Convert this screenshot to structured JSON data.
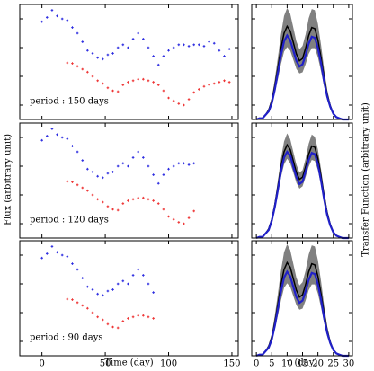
{
  "chart_data": [
    {
      "type": "scatter",
      "annotation": "period :  150 days",
      "xlim": [
        -17.5,
        155
      ],
      "xticks": [
        0,
        50,
        100,
        150
      ],
      "ylim": [
        0,
        4
      ],
      "yticks": [
        0.5,
        1.5,
        2.5,
        3.5
      ],
      "show_xtick_labels": false,
      "series": [
        {
          "color": "#2a2ae0",
          "x": [
            0,
            4,
            8,
            12,
            16,
            20,
            24,
            28,
            32,
            36,
            40,
            44,
            48,
            52,
            56,
            60,
            64,
            68,
            72,
            76,
            80,
            84,
            88,
            92,
            96,
            100,
            104,
            108,
            112,
            116,
            120,
            124,
            128,
            132,
            136,
            140,
            144,
            148
          ],
          "values": [
            3.4,
            3.55,
            3.8,
            3.6,
            3.5,
            3.45,
            3.2,
            3.0,
            2.7,
            2.4,
            2.3,
            2.15,
            2.1,
            2.25,
            2.3,
            2.5,
            2.6,
            2.5,
            2.8,
            3.0,
            2.8,
            2.5,
            2.2,
            1.9,
            2.2,
            2.4,
            2.5,
            2.6,
            2.6,
            2.55,
            2.6,
            2.6,
            2.55,
            2.7,
            2.65,
            2.4,
            2.2,
            2.45
          ]
        },
        {
          "color": "#ee3333",
          "x": [
            20,
            24,
            28,
            32,
            36,
            40,
            44,
            48,
            52,
            56,
            60,
            64,
            68,
            72,
            76,
            80,
            84,
            88,
            92,
            96,
            100,
            104,
            108,
            112,
            116,
            120,
            124,
            128,
            132,
            136,
            140,
            144,
            148
          ],
          "values": [
            1.97,
            1.95,
            1.85,
            1.75,
            1.65,
            1.5,
            1.35,
            1.25,
            1.1,
            1.0,
            0.97,
            1.2,
            1.3,
            1.35,
            1.4,
            1.4,
            1.35,
            1.3,
            1.2,
            1.0,
            0.75,
            0.65,
            0.55,
            0.5,
            0.7,
            0.94,
            1.05,
            1.15,
            1.2,
            1.25,
            1.3,
            1.35,
            1.3
          ]
        }
      ]
    },
    {
      "type": "line",
      "xlim": [
        -1.5,
        31.2
      ],
      "xticks": [
        0,
        5,
        10,
        15,
        20,
        25,
        30
      ],
      "ylim": [
        0,
        1
      ],
      "yticks": [
        0.125,
        0.375,
        0.625,
        0.875
      ],
      "show_xtick_labels": false,
      "x": [
        0,
        1,
        2,
        3,
        4,
        5,
        6,
        7,
        8,
        9,
        10,
        11,
        12,
        13,
        14,
        15,
        16,
        17,
        18,
        19,
        20,
        21,
        22,
        23,
        24,
        25,
        26,
        27,
        28,
        29,
        30
      ],
      "band": {
        "color": "#808080",
        "upper": [
          0,
          0.01,
          0.02,
          0.05,
          0.1,
          0.19,
          0.35,
          0.54,
          0.74,
          0.9,
          0.97,
          0.92,
          0.8,
          0.68,
          0.61,
          0.64,
          0.74,
          0.88,
          0.96,
          0.95,
          0.83,
          0.65,
          0.44,
          0.26,
          0.14,
          0.06,
          0.02,
          0.01,
          0,
          0,
          0
        ],
        "lower": [
          0,
          0.01,
          0.01,
          0.03,
          0.06,
          0.12,
          0.23,
          0.35,
          0.48,
          0.59,
          0.63,
          0.6,
          0.52,
          0.44,
          0.4,
          0.41,
          0.48,
          0.57,
          0.62,
          0.62,
          0.54,
          0.42,
          0.29,
          0.17,
          0.09,
          0.04,
          0.02,
          0.01,
          0,
          0,
          0
        ]
      },
      "series": [
        {
          "color": "#000000",
          "values": [
            0,
            0.01,
            0.01,
            0.04,
            0.08,
            0.16,
            0.29,
            0.45,
            0.62,
            0.75,
            0.81,
            0.77,
            0.67,
            0.57,
            0.51,
            0.53,
            0.62,
            0.73,
            0.8,
            0.79,
            0.69,
            0.54,
            0.37,
            0.22,
            0.12,
            0.05,
            0.02,
            0.01,
            0,
            0,
            0
          ]
        },
        {
          "color": "#2020c8",
          "values": [
            0,
            0.01,
            0.01,
            0.04,
            0.07,
            0.14,
            0.26,
            0.41,
            0.56,
            0.68,
            0.73,
            0.69,
            0.6,
            0.51,
            0.46,
            0.48,
            0.56,
            0.66,
            0.72,
            0.71,
            0.62,
            0.49,
            0.33,
            0.2,
            0.11,
            0.05,
            0.02,
            0.01,
            0,
            0,
            0
          ]
        }
      ]
    },
    {
      "type": "scatter",
      "annotation": "period :  120 days",
      "ylabel": "Flux (arbitrary unit)",
      "xlim": [
        -17.5,
        155
      ],
      "xticks": [
        0,
        50,
        100,
        150
      ],
      "ylim": [
        0,
        4
      ],
      "yticks": [
        0.5,
        1.5,
        2.5,
        3.5
      ],
      "show_xtick_labels": false,
      "series": [
        {
          "color": "#2a2ae0",
          "x": [
            0,
            4,
            8,
            12,
            16,
            20,
            24,
            28,
            32,
            36,
            40,
            44,
            48,
            52,
            56,
            60,
            64,
            68,
            72,
            76,
            80,
            84,
            88,
            92,
            96,
            100,
            104,
            108,
            112,
            116,
            120
          ],
          "values": [
            3.4,
            3.55,
            3.8,
            3.6,
            3.5,
            3.45,
            3.2,
            3.0,
            2.7,
            2.4,
            2.3,
            2.15,
            2.1,
            2.25,
            2.3,
            2.5,
            2.6,
            2.5,
            2.8,
            3.0,
            2.8,
            2.5,
            2.2,
            1.9,
            2.2,
            2.4,
            2.5,
            2.6,
            2.6,
            2.55,
            2.6
          ]
        },
        {
          "color": "#ee3333",
          "x": [
            20,
            24,
            28,
            32,
            36,
            40,
            44,
            48,
            52,
            56,
            60,
            64,
            68,
            72,
            76,
            80,
            84,
            88,
            92,
            96,
            100,
            104,
            108,
            112,
            116,
            120
          ],
          "values": [
            1.97,
            1.95,
            1.85,
            1.75,
            1.65,
            1.5,
            1.35,
            1.25,
            1.1,
            1.0,
            0.97,
            1.2,
            1.3,
            1.35,
            1.4,
            1.4,
            1.35,
            1.3,
            1.2,
            1.0,
            0.75,
            0.65,
            0.55,
            0.5,
            0.7,
            0.94
          ]
        }
      ]
    },
    {
      "type": "line",
      "ylabel": "Transfer Function (arbitrary unit)",
      "xlim": [
        -1.5,
        31.2
      ],
      "xticks": [
        0,
        5,
        10,
        15,
        20,
        25,
        30
      ],
      "ylim": [
        0,
        1
      ],
      "yticks": [
        0.125,
        0.375,
        0.625,
        0.875
      ],
      "show_xtick_labels": false,
      "x": [
        0,
        1,
        2,
        3,
        4,
        5,
        6,
        7,
        8,
        9,
        10,
        11,
        12,
        13,
        14,
        15,
        16,
        17,
        18,
        19,
        20,
        21,
        22,
        23,
        24,
        25,
        26,
        27,
        28,
        29,
        30
      ],
      "band": {
        "color": "#808080",
        "upper": [
          0,
          0.01,
          0.01,
          0.04,
          0.09,
          0.18,
          0.32,
          0.5,
          0.69,
          0.84,
          0.91,
          0.86,
          0.75,
          0.64,
          0.57,
          0.59,
          0.69,
          0.82,
          0.9,
          0.88,
          0.77,
          0.6,
          0.41,
          0.25,
          0.13,
          0.06,
          0.02,
          0.01,
          0,
          0,
          0
        ],
        "lower": [
          0,
          0.01,
          0.01,
          0.03,
          0.07,
          0.14,
          0.25,
          0.38,
          0.53,
          0.64,
          0.69,
          0.65,
          0.57,
          0.48,
          0.43,
          0.45,
          0.53,
          0.62,
          0.68,
          0.67,
          0.59,
          0.46,
          0.31,
          0.19,
          0.1,
          0.04,
          0.02,
          0.01,
          0,
          0,
          0
        ]
      },
      "series": [
        {
          "color": "#000000",
          "values": [
            0,
            0.01,
            0.01,
            0.04,
            0.08,
            0.16,
            0.29,
            0.45,
            0.62,
            0.75,
            0.81,
            0.77,
            0.67,
            0.57,
            0.51,
            0.53,
            0.62,
            0.73,
            0.8,
            0.79,
            0.69,
            0.54,
            0.37,
            0.22,
            0.12,
            0.05,
            0.02,
            0.01,
            0,
            0,
            0
          ]
        },
        {
          "color": "#2020c8",
          "values": [
            0,
            0.01,
            0.01,
            0.04,
            0.07,
            0.15,
            0.27,
            0.42,
            0.58,
            0.7,
            0.75,
            0.72,
            0.62,
            0.53,
            0.47,
            0.49,
            0.58,
            0.68,
            0.74,
            0.73,
            0.64,
            0.5,
            0.34,
            0.2,
            0.11,
            0.05,
            0.02,
            0.01,
            0,
            0,
            0
          ]
        }
      ]
    },
    {
      "type": "scatter",
      "annotation": "period :  90 days",
      "xlabel": "Time (day)",
      "xlim": [
        -17.5,
        155
      ],
      "xticks": [
        0,
        50,
        100,
        150
      ],
      "ylim": [
        0,
        4
      ],
      "yticks": [
        0.5,
        1.5,
        2.5,
        3.5
      ],
      "show_xtick_labels": true,
      "series": [
        {
          "color": "#2a2ae0",
          "x": [
            0,
            4,
            8,
            12,
            16,
            20,
            24,
            28,
            32,
            36,
            40,
            44,
            48,
            52,
            56,
            60,
            64,
            68,
            72,
            76,
            80,
            84,
            88
          ],
          "values": [
            3.4,
            3.55,
            3.8,
            3.6,
            3.5,
            3.45,
            3.2,
            3.0,
            2.7,
            2.4,
            2.3,
            2.15,
            2.1,
            2.25,
            2.3,
            2.5,
            2.6,
            2.5,
            2.8,
            3.0,
            2.8,
            2.5,
            2.2
          ]
        },
        {
          "color": "#ee3333",
          "x": [
            20,
            24,
            28,
            32,
            36,
            40,
            44,
            48,
            52,
            56,
            60,
            64,
            68,
            72,
            76,
            80,
            84,
            88
          ],
          "values": [
            1.97,
            1.95,
            1.85,
            1.75,
            1.65,
            1.5,
            1.35,
            1.25,
            1.1,
            1.0,
            0.97,
            1.2,
            1.3,
            1.35,
            1.4,
            1.4,
            1.35,
            1.3
          ]
        }
      ]
    },
    {
      "type": "line",
      "xlabel": "τ (day)",
      "xlim": [
        -1.5,
        31.2
      ],
      "xticks": [
        0,
        5,
        10,
        15,
        20,
        25,
        30
      ],
      "ylim": [
        0,
        1
      ],
      "yticks": [
        0.125,
        0.375,
        0.625,
        0.875
      ],
      "show_xtick_labels": true,
      "x": [
        0,
        1,
        2,
        3,
        4,
        5,
        6,
        7,
        8,
        9,
        10,
        11,
        12,
        13,
        14,
        15,
        16,
        17,
        18,
        19,
        20,
        21,
        22,
        23,
        24,
        25,
        26,
        27,
        28,
        29,
        30
      ],
      "band": {
        "color": "#808080",
        "upper": [
          0,
          0.01,
          0.02,
          0.05,
          0.1,
          0.19,
          0.35,
          0.54,
          0.74,
          0.9,
          0.97,
          0.92,
          0.8,
          0.68,
          0.61,
          0.64,
          0.74,
          0.88,
          0.96,
          0.95,
          0.83,
          0.65,
          0.44,
          0.26,
          0.14,
          0.06,
          0.02,
          0.01,
          0,
          0,
          0
        ],
        "lower": [
          0,
          0.01,
          0.01,
          0.03,
          0.06,
          0.12,
          0.23,
          0.35,
          0.48,
          0.59,
          0.63,
          0.6,
          0.52,
          0.44,
          0.4,
          0.41,
          0.48,
          0.57,
          0.62,
          0.62,
          0.54,
          0.42,
          0.29,
          0.17,
          0.09,
          0.04,
          0.02,
          0.01,
          0,
          0,
          0
        ]
      },
      "series": [
        {
          "color": "#000000",
          "values": [
            0,
            0.01,
            0.01,
            0.04,
            0.08,
            0.16,
            0.29,
            0.45,
            0.62,
            0.75,
            0.81,
            0.77,
            0.67,
            0.57,
            0.51,
            0.53,
            0.62,
            0.73,
            0.8,
            0.79,
            0.69,
            0.54,
            0.37,
            0.22,
            0.12,
            0.05,
            0.02,
            0.01,
            0,
            0,
            0
          ]
        },
        {
          "color": "#2020c8",
          "values": [
            0,
            0.01,
            0.01,
            0.04,
            0.07,
            0.14,
            0.26,
            0.41,
            0.56,
            0.68,
            0.73,
            0.69,
            0.6,
            0.51,
            0.46,
            0.48,
            0.56,
            0.66,
            0.72,
            0.71,
            0.62,
            0.49,
            0.33,
            0.2,
            0.11,
            0.05,
            0.02,
            0.01,
            0,
            0,
            0
          ]
        }
      ]
    }
  ]
}
